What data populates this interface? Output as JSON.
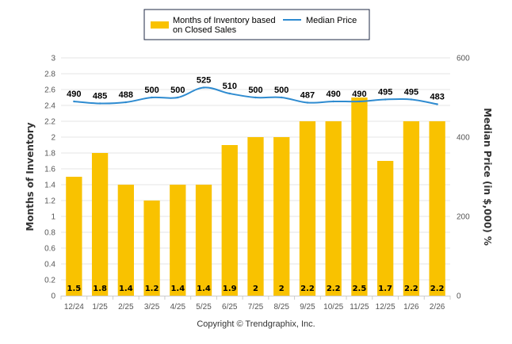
{
  "chart_data": {
    "type": "bar",
    "categories": [
      "12/24",
      "1/25",
      "2/25",
      "3/25",
      "4/25",
      "5/25",
      "6/25",
      "7/25",
      "8/25",
      "9/25",
      "10/25",
      "11/25",
      "12/25",
      "1/26",
      "2/26"
    ],
    "series": [
      {
        "name": "Months of Inventory based on Closed Sales",
        "type": "bar",
        "axis": "left",
        "color": "#F9C200",
        "values": [
          1.5,
          1.8,
          1.4,
          1.2,
          1.4,
          1.4,
          1.9,
          2,
          2,
          2.2,
          2.2,
          2.5,
          1.7,
          2.2,
          2.2
        ],
        "labels": [
          "1.5",
          "1.8",
          "1.4",
          "1.2",
          "1.4",
          "1.4",
          "1.9",
          "2",
          "2",
          "2.2",
          "2.2",
          "2.5",
          "1.7",
          "2.2",
          "2.2"
        ]
      },
      {
        "name": "Median Price",
        "type": "line",
        "axis": "right",
        "color": "#2E8BD0",
        "values": [
          490,
          485,
          488,
          500,
          500,
          525,
          510,
          500,
          500,
          487,
          490,
          490,
          495,
          495,
          483
        ],
        "labels": [
          "490",
          "485",
          "488",
          "500",
          "500",
          "525",
          "510",
          "500",
          "500",
          "487",
          "490",
          "490",
          "495",
          "495",
          "483"
        ]
      }
    ],
    "left_axis": {
      "title": "Months of Inventory",
      "range": [
        0,
        3
      ],
      "ticks": [
        "0",
        "0.2",
        "0.4",
        "0.6",
        "0.8",
        "1",
        "1.2",
        "1.4",
        "1.6",
        "1.8",
        "2",
        "2.2",
        "2.4",
        "2.6",
        "2.8",
        "3"
      ]
    },
    "right_axis": {
      "title": "Median Price (in $,000) %",
      "range": [
        0,
        600
      ],
      "ticks": [
        "0",
        "200",
        "400",
        "600"
      ]
    },
    "grid": true,
    "legend": {
      "position": "top",
      "items": [
        {
          "label_line1": "Months of Inventory based",
          "label_line2": "on Closed Sales",
          "swatch": "bar"
        },
        {
          "label_line1": "Median Price",
          "label_line2": "",
          "swatch": "line"
        }
      ]
    }
  },
  "footer": {
    "copyright": "Copyright © Trendgraphix, Inc."
  }
}
